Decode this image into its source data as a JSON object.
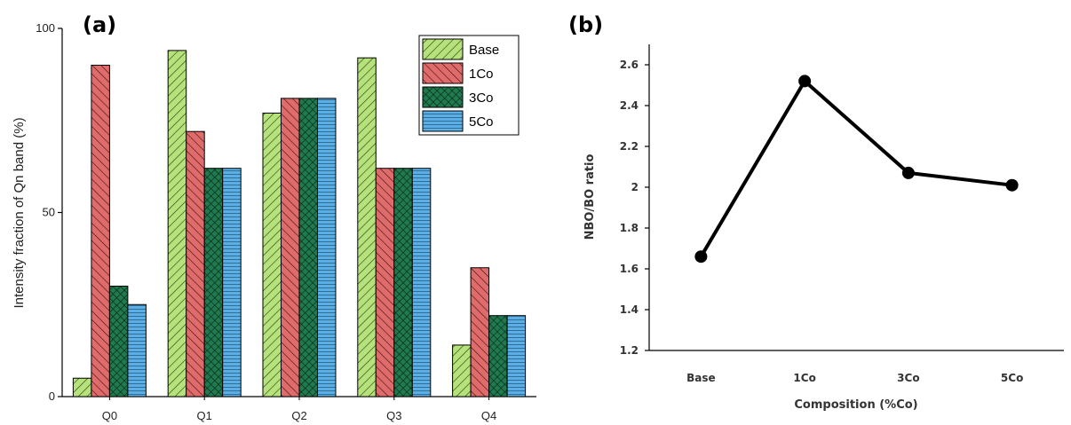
{
  "panels": {
    "a": {
      "label": "(a)"
    },
    "b": {
      "label": "(b)"
    }
  },
  "colors": {
    "Base": "#b5e27a",
    "1Co": "#e06b6b",
    "3Co": "#1f7a4e",
    "5Co": "#5ab0e6"
  },
  "chart_data": [
    {
      "type": "bar",
      "title": "",
      "xlabel": "",
      "ylabel": "Intensity fraction of Qn band (%)",
      "categories": [
        "Q0",
        "Q1",
        "Q2",
        "Q3",
        "Q4"
      ],
      "ylim": [
        0,
        100
      ],
      "yticks": [
        0,
        50,
        100
      ],
      "legend_position": "top-right",
      "series": [
        {
          "name": "Base",
          "values": [
            5,
            94,
            77,
            92,
            14
          ]
        },
        {
          "name": "1Co",
          "values": [
            90,
            72,
            81,
            62,
            35
          ]
        },
        {
          "name": "3Co",
          "values": [
            30,
            62,
            81,
            62,
            22
          ]
        },
        {
          "name": "5Co",
          "values": [
            25,
            62,
            81,
            62,
            22
          ]
        }
      ]
    },
    {
      "type": "line",
      "title": "",
      "xlabel": "Composition (%Co)",
      "ylabel": "NBO/BO ratio",
      "categories": [
        "Base",
        "1Co",
        "3Co",
        "5Co"
      ],
      "values": [
        1.66,
        2.52,
        2.07,
        2.01
      ],
      "ylim": [
        1.2,
        2.6
      ],
      "yticks": [
        "1.2",
        "1.4",
        "1.6",
        "1.8",
        "2",
        "2.2",
        "2.4",
        "2.6"
      ],
      "grid": false
    }
  ]
}
